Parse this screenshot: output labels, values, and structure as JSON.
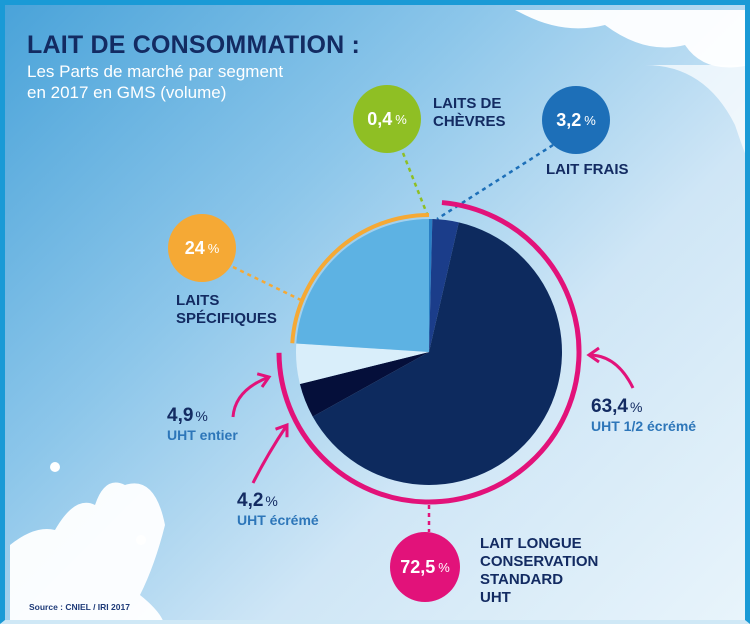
{
  "header": {
    "title": "LAIT DE CONSOMMATION :",
    "subtitle_line1": "Les Parts de marché par segment",
    "subtitle_line2": "en 2017 en GMS (volume)"
  },
  "footer": {
    "source": "Source : CNIEL / IRI 2017"
  },
  "colors": {
    "brand_blue": "#1a9ad6",
    "title_navy": "#132b62",
    "pink": "#e2127a",
    "orange": "#f5a935",
    "green": "#8fbf24",
    "lait_frais_blue": "#1d6fb8"
  },
  "chart_data": {
    "type": "pie",
    "title": "LAIT DE CONSOMMATION : Les Parts de marché par segment en 2017 en GMS (volume)",
    "unit": "%",
    "slices": [
      {
        "name": "Laits de chèvres",
        "value": 0.4,
        "display": "0,4",
        "color": "#2a7fc4"
      },
      {
        "name": "Lait frais",
        "value": 3.2,
        "display": "3,2",
        "color": "#1b3d8a"
      },
      {
        "name": "UHT 1/2 écrémé",
        "value": 63.4,
        "display": "63,4",
        "color": "#0d2a5e"
      },
      {
        "name": "UHT écrémé",
        "value": 4.2,
        "display": "4,2",
        "color": "#050f3a"
      },
      {
        "name": "UHT entier",
        "value": 4.9,
        "display": "4,9",
        "color": "#d9eefa"
      },
      {
        "name": "Laits spécifiques",
        "value": 24,
        "display": "24",
        "color": "#5db2e3"
      }
    ],
    "groups": [
      {
        "name": "Lait longue conservation standard UHT",
        "value": 72.5,
        "display": "72,5",
        "members": [
          "UHT 1/2 écrémé",
          "UHT écrémé",
          "UHT entier"
        ],
        "color": "#e2127a"
      },
      {
        "name": "Laits spécifiques",
        "value": 24,
        "display": "24",
        "members": [
          "Laits spécifiques"
        ],
        "color": "#f5a935"
      }
    ],
    "labels": {
      "chevres": {
        "value": "0,4",
        "pct": "%",
        "line1": "LAITS DE",
        "line2": "CHÈVRES"
      },
      "frais": {
        "value": "3,2",
        "pct": "%",
        "name": "LAIT FRAIS"
      },
      "specifiques": {
        "value": "24",
        "pct": "%",
        "line1": "LAITS",
        "line2": "SPÉCIFIQUES"
      },
      "uht_entier": {
        "value": "4,9",
        "pct": "%",
        "name": "UHT entier"
      },
      "uht_ecreme": {
        "value": "4,2",
        "pct": "%",
        "name": "UHT écrémé"
      },
      "uht_demi": {
        "value": "63,4",
        "pct": "%",
        "name": "UHT 1/2 écrémé"
      },
      "uht_total": {
        "value": "72,5",
        "pct": "%",
        "line1": "LAIT LONGUE",
        "line2": "CONSERVATION",
        "line3": "STANDARD",
        "line4": "UHT"
      }
    }
  }
}
